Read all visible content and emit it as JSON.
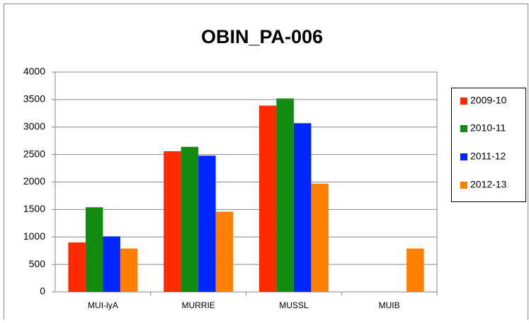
{
  "chart_data": {
    "type": "bar",
    "title": "OBIN_PA-006",
    "categories": [
      "MUI-lyA",
      "MURRIE",
      "MUSSL",
      "MUIB"
    ],
    "series": [
      {
        "name": "2009-10",
        "color": "#ff2a00",
        "values": [
          900,
          2560,
          3390,
          null
        ]
      },
      {
        "name": "2010-11",
        "color": "#118c11",
        "values": [
          1540,
          2640,
          3520,
          null
        ]
      },
      {
        "name": "2011-12",
        "color": "#0026ff",
        "values": [
          1010,
          2480,
          3070,
          null
        ]
      },
      {
        "name": "2012-13",
        "color": "#ff7f00",
        "values": [
          790,
          1460,
          1970,
          790
        ]
      }
    ],
    "ylim": [
      0,
      4000
    ],
    "yticks": [
      0,
      500,
      1000,
      1500,
      2000,
      2500,
      3000,
      3500,
      4000
    ],
    "grid": true,
    "legend": "right"
  }
}
